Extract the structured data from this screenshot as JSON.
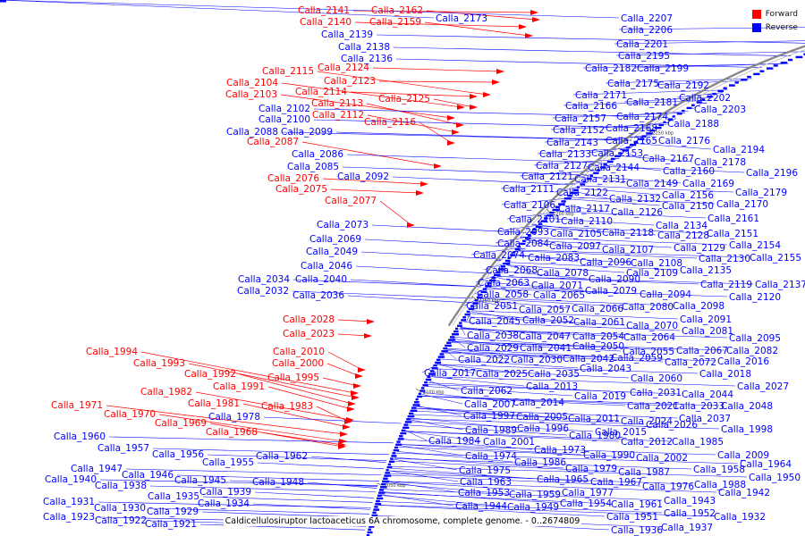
{
  "legend": [
    {
      "label": "Forward",
      "color": "#ff0000"
    },
    {
      "label": "Reverse",
      "color": "#0000ff"
    }
  ],
  "caption": "Caldicellulosiruptor lactoaceticus 6A chromosome, complete genome. - 0..2674809",
  "ticks": [
    "2300 kbp",
    "2250 kbp",
    "2200 kbp",
    "2150 kbp",
    "2100 kbp",
    "2050 kbp"
  ],
  "colors": {
    "forward": "#ff0000",
    "reverse": "#0000ff",
    "backbone": "#888888"
  },
  "forward_genes": [
    "Calla_2141",
    "Calla_2162",
    "Calla_2140",
    "Calla_2159",
    "Calla_2124",
    "Calla_2115",
    "Calla_2123",
    "Calla_2104",
    "Calla_2114",
    "Calla_2103",
    "Calla_2125",
    "Calla_2113",
    "Calla_2112",
    "Calla_2116",
    "Calla_2087",
    "Calla_2076",
    "Calla_2075",
    "Calla_2077",
    "Calla_2028",
    "Calla_2023",
    "Calla_1994",
    "Calla_2010",
    "Calla_1993",
    "Calla_2000",
    "Calla_1992",
    "Calla_1995",
    "Calla_1991",
    "Calla_1982",
    "Calla_1981",
    "Calla_1983",
    "Calla_1971",
    "Calla_1970",
    "Calla_1969",
    "Calla_1968"
  ],
  "reverse_genes_left": [
    "Calla_2139",
    "Calla_2138",
    "Calla_2136",
    "Calla_2102",
    "Calla_2100",
    "Calla_2088",
    "Calla_2099",
    "Calla_2086",
    "Calla_2085",
    "Calla_2092",
    "Calla_2073",
    "Calla_2069",
    "Calla_2049",
    "Calla_2046",
    "Calla_2034",
    "Calla_2040",
    "Calla_2032",
    "Calla_2036",
    "Calla_1978",
    "Calla_1960",
    "Calla_1957",
    "Calla_1956",
    "Calla_1962",
    "Calla_1955",
    "Calla_1947",
    "Calla_1946",
    "Calla_1940",
    "Calla_1945",
    "Calla_1938",
    "Calla_1948",
    "Calla_1939",
    "Calla_1935",
    "Calla_1934",
    "Calla_1931",
    "Calla_1930",
    "Calla_1929",
    "Calla_1923",
    "Calla_1922",
    "Calla_1921"
  ],
  "reverse_genes_right": [
    "Calla_2173",
    "Calla_2207",
    "Calla_2206",
    "Calla_2201",
    "Calla_2195",
    "Calla_2182",
    "Calla_2199",
    "Calla_2175",
    "Calla_2192",
    "Calla_2171",
    "Calla_2202",
    "Calla_2181",
    "Calla_2166",
    "Calla_2203",
    "Calla_2157",
    "Calla_2174",
    "Calla_2188",
    "Calla_2152",
    "Calla_2168",
    "Calla_2143",
    "Calla_2165",
    "Calla_2176",
    "Calla_2133",
    "Calla_2153",
    "Calla_2194",
    "Calla_2127",
    "Calla_2167",
    "Calla_2178",
    "Calla_2144",
    "Calla_2160",
    "Calla_2196",
    "Calla_2121",
    "Calla_2131",
    "Calla_2149",
    "Calla_2169",
    "Calla_2111",
    "Calla_2122",
    "Calla_2132",
    "Calla_2156",
    "Calla_2179",
    "Calla_2106",
    "Calla_2117",
    "Calla_2126",
    "Calla_2150",
    "Calla_2170",
    "Calla_2101",
    "Calla_2110",
    "Calla_2134",
    "Calla_2161",
    "Calla_2093",
    "Calla_2105",
    "Calla_2118",
    "Calla_2128",
    "Calla_2151",
    "Calla_2084",
    "Calla_2097",
    "Calla_2107",
    "Calla_2129",
    "Calla_2154",
    "Calla_2074",
    "Calla_2083",
    "Calla_2096",
    "Calla_2108",
    "Calla_2130",
    "Calla_2155",
    "Calla_2068",
    "Calla_2078",
    "Calla_2109",
    "Calla_2135",
    "Calla_2063",
    "Calla_2071",
    "Calla_2090",
    "Calla_2119",
    "Calla_2137",
    "Calla_2058",
    "Calla_2065",
    "Calla_2079",
    "Calla_2094",
    "Calla_2120",
    "Calla_2051",
    "Calla_2057",
    "Calla_2066",
    "Calla_2080",
    "Calla_2098",
    "Calla_2045",
    "Calla_2052",
    "Calla_2061",
    "Calla_2070",
    "Calla_2091",
    "Calla_2081",
    "Calla_2038",
    "Calla_2047",
    "Calla_2054",
    "Calla_2064",
    "Calla_2095",
    "Calla_2029",
    "Calla_2041",
    "Calla_2050",
    "Calla_2055",
    "Calla_2067",
    "Calla_2082",
    "Calla_2022",
    "Calla_2030",
    "Calla_2042",
    "Calla_2059",
    "Calla_2072",
    "Calla_2016",
    "Calla_2017",
    "Calla_2025",
    "Calla_2035",
    "Calla_2043",
    "Calla_2060",
    "Calla_2018",
    "Calla_2027",
    "Calla_2062",
    "Calla_2013",
    "Calla_2019",
    "Calla_2031",
    "Calla_2044",
    "Calla_2007",
    "Calla_2014",
    "Calla_2021",
    "Calla_2033",
    "Calla_2048",
    "Calla_1997",
    "Calla_2005",
    "Calla_2011",
    "Calla_2024",
    "Calla_2037",
    "Calla_1989",
    "Calla_1996",
    "Calla_2015",
    "Calla_2026",
    "Calla_1998",
    "Calla_1980",
    "Calla_1984",
    "Calla_2001",
    "Calla_2012",
    "Calla_1985",
    "Calla_1973",
    "Calla_1974",
    "Calla_1986",
    "Calla_1990",
    "Calla_2002",
    "Calla_2009",
    "Calla_1964",
    "Calla_1975",
    "Calla_1979",
    "Calla_1987",
    "Calla_1958",
    "Calla_1963",
    "Calla_1965",
    "Calla_1967",
    "Calla_1976",
    "Calla_1988",
    "Calla_1950",
    "Calla_1953",
    "Calla_1959",
    "Calla_1977",
    "Calla_1942",
    "Calla_1944",
    "Calla_1949",
    "Calla_1954",
    "Calla_1961",
    "Calla_1943",
    "Calla_1951",
    "Calla_1952",
    "Calla_1932",
    "Calla_1936",
    "Calla_1937"
  ]
}
